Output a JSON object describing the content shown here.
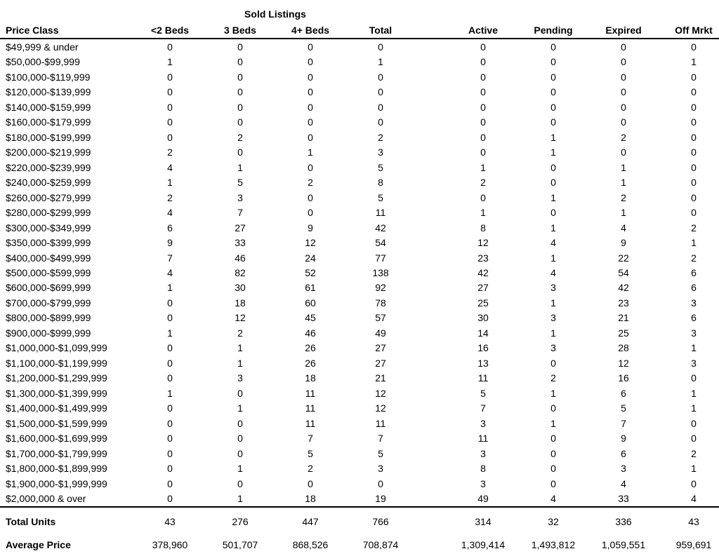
{
  "table": {
    "group_header": "Sold Listings",
    "columns": [
      "Price Class",
      "<2 Beds",
      "3 Beds",
      "4+ Beds",
      "Total",
      "Active",
      "Pending",
      "Expired",
      "Off Mrkt"
    ],
    "rows": [
      [
        "$49,999 & under",
        0,
        0,
        0,
        0,
        0,
        0,
        0,
        0
      ],
      [
        "$50,000-$99,999",
        1,
        0,
        0,
        1,
        0,
        0,
        0,
        1
      ],
      [
        "$100,000-$119,999",
        0,
        0,
        0,
        0,
        0,
        0,
        0,
        0
      ],
      [
        "$120,000-$139,999",
        0,
        0,
        0,
        0,
        0,
        0,
        0,
        0
      ],
      [
        "$140,000-$159,999",
        0,
        0,
        0,
        0,
        0,
        0,
        0,
        0
      ],
      [
        "$160,000-$179,999",
        0,
        0,
        0,
        0,
        0,
        0,
        0,
        0
      ],
      [
        "$180,000-$199,999",
        0,
        2,
        0,
        2,
        0,
        1,
        2,
        0
      ],
      [
        "$200,000-$219,999",
        2,
        0,
        1,
        3,
        0,
        1,
        0,
        0
      ],
      [
        "$220,000-$239,999",
        4,
        1,
        0,
        5,
        1,
        0,
        1,
        0
      ],
      [
        "$240,000-$259,999",
        1,
        5,
        2,
        8,
        2,
        0,
        1,
        0
      ],
      [
        "$260,000-$279,999",
        2,
        3,
        0,
        5,
        0,
        1,
        2,
        0
      ],
      [
        "$280,000-$299,999",
        4,
        7,
        0,
        11,
        1,
        0,
        1,
        0
      ],
      [
        "$300,000-$349,999",
        6,
        27,
        9,
        42,
        8,
        1,
        4,
        2
      ],
      [
        "$350,000-$399,999",
        9,
        33,
        12,
        54,
        12,
        4,
        9,
        1
      ],
      [
        "$400,000-$499,999",
        7,
        46,
        24,
        77,
        23,
        1,
        22,
        2
      ],
      [
        "$500,000-$599,999",
        4,
        82,
        52,
        138,
        42,
        4,
        54,
        6
      ],
      [
        "$600,000-$699,999",
        1,
        30,
        61,
        92,
        27,
        3,
        42,
        6
      ],
      [
        "$700,000-$799,999",
        0,
        18,
        60,
        78,
        25,
        1,
        23,
        3
      ],
      [
        "$800,000-$899,999",
        0,
        12,
        45,
        57,
        30,
        3,
        21,
        6
      ],
      [
        "$900,000-$999,999",
        1,
        2,
        46,
        49,
        14,
        1,
        25,
        3
      ],
      [
        "$1,000,000-$1,099,999",
        0,
        1,
        26,
        27,
        16,
        3,
        28,
        1
      ],
      [
        "$1,100,000-$1,199,999",
        0,
        1,
        26,
        27,
        13,
        0,
        12,
        3
      ],
      [
        "$1,200,000-$1,299,999",
        0,
        3,
        18,
        21,
        11,
        2,
        16,
        0
      ],
      [
        "$1,300,000-$1,399,999",
        1,
        0,
        11,
        12,
        5,
        1,
        6,
        1
      ],
      [
        "$1,400,000-$1,499,999",
        0,
        1,
        11,
        12,
        7,
        0,
        5,
        1
      ],
      [
        "$1,500,000-$1,599,999",
        0,
        0,
        11,
        11,
        3,
        1,
        7,
        0
      ],
      [
        "$1,600,000-$1,699,999",
        0,
        0,
        7,
        7,
        11,
        0,
        9,
        0
      ],
      [
        "$1,700,000-$1,799,999",
        0,
        0,
        5,
        5,
        3,
        0,
        6,
        2
      ],
      [
        "$1,800,000-$1,899,999",
        0,
        1,
        2,
        3,
        8,
        0,
        3,
        1
      ],
      [
        "$1,900,000-$1,999,999",
        0,
        0,
        0,
        0,
        3,
        0,
        4,
        0
      ],
      [
        "$2,000,000 & over",
        0,
        1,
        18,
        19,
        49,
        4,
        33,
        4
      ]
    ],
    "summary": [
      [
        "Total Units",
        43,
        276,
        447,
        766,
        314,
        32,
        336,
        43
      ],
      [
        "Average Price",
        "378,960",
        "501,707",
        "868,526",
        "708,874",
        "1,309,414",
        "1,493,812",
        "1,059,551",
        "959,691"
      ]
    ]
  }
}
